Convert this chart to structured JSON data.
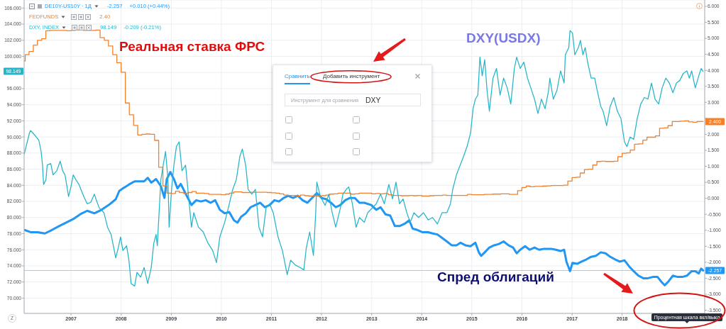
{
  "chart_data": {
    "type": "line",
    "xlim": [
      "2006-01-24",
      "2019-08-26"
    ],
    "xticks": [
      "2007",
      "2008",
      "2009",
      "2010",
      "2011",
      "2012",
      "2013",
      "2014",
      "2015",
      "2016",
      "2017",
      "2018"
    ],
    "ylim": [
      68.1,
      107
    ],
    "yticks": [
      {
        "value": 106,
        "label": "106.000"
      },
      {
        "value": 104,
        "label": "104.000"
      },
      {
        "value": 102,
        "label": "102.000"
      },
      {
        "value": 100,
        "label": "100.000"
      },
      {
        "value": 98,
        "label": null
      },
      {
        "value": 96,
        "label": "96.000"
      },
      {
        "value": 94,
        "label": "94.000"
      },
      {
        "value": 92,
        "label": "92.000"
      },
      {
        "value": 90,
        "label": "90.000"
      },
      {
        "value": 88,
        "label": "88.000"
      },
      {
        "value": 86,
        "label": "86.000"
      },
      {
        "value": 84,
        "label": "84.000"
      },
      {
        "value": 82,
        "label": "82.000"
      },
      {
        "value": 80,
        "label": "80.000"
      },
      {
        "value": 78,
        "label": "78.000"
      },
      {
        "value": 76,
        "label": "76.000"
      },
      {
        "value": 74,
        "label": "74.000"
      },
      {
        "value": 72,
        "label": "72.000"
      },
      {
        "value": 70,
        "label": "70.000"
      }
    ],
    "y2lim": [
      -3.6,
      6.2
    ],
    "y2ticks": [
      {
        "value": 6,
        "label": "6.000"
      },
      {
        "value": 5.5,
        "label": "5.500"
      },
      {
        "value": 5,
        "label": "5.000"
      },
      {
        "value": 4.5,
        "label": "4.500"
      },
      {
        "value": 4,
        "label": "4.000"
      },
      {
        "value": 3.5,
        "label": "3.500"
      },
      {
        "value": 3,
        "label": "3.000"
      },
      {
        "value": 2.5,
        "label": null
      },
      {
        "value": 2,
        "label": "2.000"
      },
      {
        "value": 1.5,
        "label": "1.500"
      },
      {
        "value": 1,
        "label": "1.000"
      },
      {
        "value": 0.5,
        "label": "0.500"
      },
      {
        "value": 0,
        "label": "0.000"
      },
      {
        "value": -0.5,
        "label": "-0.500"
      },
      {
        "value": -1,
        "label": "-1.000"
      },
      {
        "value": -1.5,
        "label": "-1.500"
      },
      {
        "value": -2,
        "label": "-2.000"
      },
      {
        "value": -2.5,
        "label": "-2.500"
      },
      {
        "value": -3,
        "label": "-3.000"
      },
      {
        "value": -3.5,
        "label": "-3.500"
      }
    ],
    "grid": true,
    "legend": "top left",
    "ref_lines": [
      {
        "axis": "y2",
        "value": -2.257,
        "color": "#9bcdf2"
      }
    ],
    "series": [
      {
        "name": "DE10Y-US10Y · 1Д",
        "color": "#2196f3",
        "axis": "y2",
        "x": [
          "2006-01-25",
          "2006-03-12",
          "2006-05-03",
          "2006-06-24",
          "2006-08-15",
          "2006-10-06",
          "2006-11-27",
          "2007-01-17",
          "2007-03-09",
          "2007-04-29",
          "2007-06-20",
          "2007-08-12",
          "2007-10-03",
          "2007-11-23",
          "2007-12-19",
          "2008-01-14",
          "2008-02-10",
          "2008-03-06",
          "2008-04-09",
          "2008-05-14",
          "2008-06-17",
          "2008-07-13",
          "2008-08-08",
          "2008-09-12",
          "2008-10-17",
          "2008-11-12",
          "2008-11-29",
          "2008-12-25",
          "2009-01-20",
          "2009-02-15",
          "2009-03-11",
          "2009-04-23",
          "2009-05-28",
          "2009-07-02",
          "2009-08-05",
          "2009-09-09",
          "2009-10-14",
          "2009-11-17",
          "2009-12-21",
          "2010-01-25",
          "2010-02-27",
          "2010-04-03",
          "2010-04-29",
          "2010-05-25",
          "2010-06-28",
          "2010-08-02",
          "2010-09-06",
          "2010-10-11",
          "2010-11-14",
          "2010-12-19",
          "2011-01-23",
          "2011-02-25",
          "2011-03-31",
          "2011-05-04",
          "2011-06-08",
          "2011-07-12",
          "2011-08-16",
          "2011-09-20",
          "2011-10-24",
          "2011-11-28",
          "2012-01-02",
          "2012-02-06",
          "2012-03-10",
          "2012-04-14",
          "2012-05-18",
          "2012-06-22",
          "2012-07-26",
          "2012-08-31",
          "2012-10-04",
          "2012-11-08",
          "2012-12-29",
          "2013-02-03",
          "2013-03-07",
          "2013-04-11",
          "2013-05-16",
          "2013-06-19",
          "2013-07-23",
          "2013-08-28",
          "2013-10-02",
          "2013-10-27",
          "2013-11-30",
          "2014-01-05",
          "2014-02-17",
          "2014-03-21",
          "2014-04-25",
          "2014-05-29",
          "2014-07-03",
          "2014-08-07",
          "2014-09-11",
          "2014-10-11",
          "2014-11-15",
          "2014-12-23",
          "2015-01-27",
          "2015-02-21",
          "2015-03-10",
          "2015-04-05",
          "2015-05-09",
          "2015-06-13",
          "2015-07-17",
          "2015-08-21",
          "2015-09-25",
          "2015-10-29",
          "2015-11-24",
          "2015-12-20",
          "2016-01-24",
          "2016-02-27",
          "2016-04-02",
          "2016-05-06",
          "2016-06-10",
          "2016-07-14",
          "2016-08-01",
          "2016-09-05",
          "2016-10-09",
          "2016-11-04",
          "2016-11-21",
          "2016-12-17",
          "2017-01-04",
          "2017-02-07",
          "2017-03-12",
          "2017-04-16",
          "2017-05-20",
          "2017-06-24",
          "2017-07-29",
          "2017-09-02",
          "2017-10-06",
          "2017-11-10",
          "2017-12-14",
          "2018-01-18",
          "2018-02-21",
          "2018-03-26",
          "2018-04-30",
          "2018-06-04",
          "2018-07-08",
          "2018-08-12",
          "2018-09-16",
          "2018-10-20",
          "2018-11-07",
          "2018-12-03",
          "2019-01-06",
          "2019-02-10",
          "2019-03-15",
          "2019-04-18",
          "2019-05-23",
          "2019-06-18",
          "2019-07-14",
          "2019-07-31",
          "2019-08-14"
        ],
        "values": [
          -0.99,
          -1.06,
          -1.06,
          -1.1,
          -0.99,
          -0.87,
          -0.76,
          -0.65,
          -0.5,
          -0.39,
          -0.47,
          -0.36,
          -0.21,
          -0.03,
          0.23,
          0.31,
          0.38,
          0.45,
          0.53,
          0.53,
          0.53,
          0.64,
          0.49,
          0.6,
          0.38,
          0.01,
          0.6,
          0.82,
          0.6,
          0.31,
          0.45,
          0.08,
          -0.21,
          -0.06,
          -0.1,
          -0.06,
          -0.14,
          -0.06,
          -0.36,
          -0.47,
          -0.43,
          -0.69,
          -0.76,
          -0.58,
          -0.47,
          -0.28,
          -0.21,
          -0.14,
          -0.28,
          -0.21,
          -0.06,
          -0.1,
          0.01,
          0.08,
          0.01,
          0.08,
          -0.06,
          -0.14,
          0.01,
          0.16,
          0.01,
          -0.03,
          -0.14,
          -0.28,
          -0.21,
          -0.06,
          0.01,
          0.01,
          -0.14,
          -0.14,
          -0.21,
          -0.36,
          -0.28,
          -0.5,
          -0.54,
          -0.87,
          -0.87,
          -0.8,
          -0.69,
          -0.95,
          -0.99,
          -1.06,
          -1.06,
          -1.1,
          -1.13,
          -1.24,
          -1.35,
          -1.47,
          -1.47,
          -1.39,
          -1.47,
          -1.5,
          -1.39,
          -1.69,
          -1.8,
          -1.69,
          -1.54,
          -1.47,
          -1.43,
          -1.35,
          -1.47,
          -1.54,
          -1.72,
          -1.61,
          -1.5,
          -1.61,
          -1.54,
          -1.61,
          -1.58,
          -1.58,
          -1.58,
          -1.61,
          -1.65,
          -1.61,
          -1.98,
          -2.28,
          -2.02,
          -2.05,
          -1.98,
          -1.91,
          -1.83,
          -1.8,
          -1.69,
          -1.72,
          -1.83,
          -1.91,
          -1.98,
          -1.94,
          -2.13,
          -2.28,
          -2.42,
          -2.5,
          -2.5,
          -2.46,
          -2.46,
          -2.64,
          -2.72,
          -2.61,
          -2.42,
          -2.46,
          -2.46,
          -2.42,
          -2.28,
          -2.28,
          -2.35,
          -2.2,
          -2.257
        ],
        "value_labels": [
          null,
          null,
          null,
          null,
          null,
          null,
          null,
          null,
          null,
          null,
          null,
          null,
          null,
          null,
          null,
          null,
          null,
          null,
          null,
          null,
          null,
          null,
          null,
          null,
          null,
          null,
          null,
          null,
          null,
          null,
          null,
          null,
          null,
          null,
          null,
          null,
          null,
          null,
          null,
          null,
          null,
          null,
          null,
          null,
          null,
          null,
          null,
          null,
          null,
          null,
          null,
          null,
          null,
          null,
          null,
          null,
          null,
          null,
          null,
          null,
          null,
          null,
          null,
          null,
          null,
          null,
          null,
          null,
          null,
          null,
          null,
          null,
          null,
          null,
          null,
          null,
          null,
          null,
          null,
          null,
          null,
          null,
          null,
          null,
          null,
          null,
          null,
          null,
          null,
          null,
          null,
          null,
          null,
          null,
          null,
          null,
          null,
          null,
          null,
          null,
          null,
          null,
          null,
          null,
          null,
          null,
          null,
          null,
          null,
          null,
          null,
          null,
          null,
          null,
          null,
          null,
          null,
          null,
          null,
          null,
          null,
          null,
          null,
          null,
          null,
          null,
          null,
          null,
          null,
          null,
          null,
          null,
          null,
          null,
          null,
          null,
          null,
          null,
          null,
          null,
          null,
          null,
          null,
          null,
          null,
          null,
          "-2.257"
        ]
      },
      {
        "name": "FEDFUNDS",
        "color": "#f3812b",
        "axis": "y2",
        "type": "step",
        "x": [
          "2006-01-24",
          "2006-02",
          "2006-03",
          "2006-04",
          "2006-05",
          "2006-06",
          "2006-07",
          "2006-08",
          "2006-09",
          "2006-10",
          "2006-11",
          "2006-12",
          "2007-01",
          "2007-02",
          "2007-03",
          "2007-04",
          "2007-05",
          "2007-06",
          "2007-07",
          "2007-08",
          "2007-09",
          "2007-10",
          "2007-11",
          "2007-12",
          "2008-01",
          "2008-02",
          "2008-03",
          "2008-04",
          "2008-05",
          "2008-06",
          "2008-07",
          "2008-08",
          "2008-09",
          "2008-10",
          "2008-11",
          "2008-12",
          "2009-01",
          "2009-02",
          "2009-03",
          "2009-04",
          "2009-05",
          "2009-06",
          "2009-07",
          "2009-08",
          "2009-09",
          "2009-10",
          "2009-11",
          "2009-12",
          "2010-01",
          "2010-02",
          "2010-03",
          "2010-04",
          "2010-05",
          "2010-06",
          "2010-07",
          "2010-08",
          "2010-09",
          "2010-10",
          "2010-11",
          "2010-12",
          "2011-01",
          "2011-02",
          "2011-03",
          "2011-04",
          "2011-05",
          "2011-06",
          "2011-07",
          "2011-08",
          "2011-09",
          "2011-10",
          "2011-11",
          "2011-12",
          "2012-01",
          "2012-02",
          "2012-03",
          "2012-04",
          "2012-05",
          "2012-06",
          "2012-07",
          "2012-08",
          "2012-09",
          "2012-10",
          "2012-11",
          "2012-12",
          "2013-01",
          "2013-02",
          "2013-03",
          "2013-04",
          "2013-05",
          "2013-06",
          "2013-07",
          "2013-08",
          "2013-09",
          "2013-10",
          "2013-11",
          "2013-12",
          "2014-01",
          "2014-02",
          "2014-03",
          "2014-04",
          "2014-05",
          "2014-06",
          "2014-07",
          "2014-08",
          "2014-09",
          "2014-10",
          "2014-11",
          "2014-12",
          "2015-01",
          "2015-02",
          "2015-03",
          "2015-04",
          "2015-05",
          "2015-06",
          "2015-07",
          "2015-08",
          "2015-09",
          "2015-10",
          "2015-11",
          "2015-12",
          "2016-01",
          "2016-02",
          "2016-03",
          "2016-04",
          "2016-05",
          "2016-06",
          "2016-07",
          "2016-08",
          "2016-09",
          "2016-10",
          "2016-11",
          "2016-12",
          "2017-01",
          "2017-02",
          "2017-03",
          "2017-04",
          "2017-05",
          "2017-06",
          "2017-07",
          "2017-08",
          "2017-09",
          "2017-10",
          "2017-11",
          "2017-12",
          "2018-01",
          "2018-02",
          "2018-03",
          "2018-04",
          "2018-05",
          "2018-06",
          "2018-07",
          "2018-08",
          "2018-09",
          "2018-10",
          "2018-11",
          "2018-12",
          "2019-01",
          "2019-02",
          "2019-03",
          "2019-04",
          "2019-05",
          "2019-06",
          "2019-07",
          "2019-08-14"
        ],
        "values": [
          4.29,
          4.49,
          4.59,
          4.79,
          4.94,
          4.99,
          5.24,
          5.25,
          5.25,
          5.25,
          5.25,
          5.24,
          5.25,
          5.26,
          5.26,
          5.25,
          5.25,
          5.25,
          5.26,
          5.02,
          4.94,
          4.76,
          4.49,
          4.24,
          3.94,
          2.98,
          2.61,
          2.28,
          1.98,
          2.0,
          2.01,
          2.0,
          1.81,
          0.97,
          0.39,
          0.16,
          0.15,
          0.22,
          0.18,
          0.15,
          0.18,
          0.21,
          0.16,
          0.16,
          0.15,
          0.12,
          0.12,
          0.12,
          0.11,
          0.13,
          0.16,
          0.2,
          0.2,
          0.18,
          0.18,
          0.19,
          0.19,
          0.19,
          0.19,
          0.18,
          0.17,
          0.16,
          0.14,
          0.1,
          0.09,
          0.09,
          0.07,
          0.1,
          0.08,
          0.07,
          0.08,
          0.07,
          0.08,
          0.1,
          0.13,
          0.14,
          0.16,
          0.16,
          0.16,
          0.13,
          0.14,
          0.16,
          0.16,
          0.16,
          0.14,
          0.15,
          0.14,
          0.15,
          0.11,
          0.09,
          0.09,
          0.08,
          0.08,
          0.09,
          0.08,
          0.09,
          0.07,
          0.07,
          0.08,
          0.09,
          0.09,
          0.1,
          0.09,
          0.09,
          0.09,
          0.09,
          0.09,
          0.12,
          0.11,
          0.11,
          0.11,
          0.12,
          0.12,
          0.13,
          0.13,
          0.14,
          0.14,
          0.12,
          0.12,
          0.24,
          0.34,
          0.38,
          0.36,
          0.37,
          0.37,
          0.38,
          0.39,
          0.4,
          0.4,
          0.4,
          0.41,
          0.54,
          0.65,
          0.66,
          0.79,
          0.9,
          0.91,
          1.04,
          1.15,
          1.16,
          1.15,
          1.15,
          1.16,
          1.3,
          1.41,
          1.42,
          1.51,
          1.69,
          1.7,
          1.82,
          1.91,
          1.91,
          1.95,
          2.19,
          2.2,
          2.27,
          2.4,
          2.4,
          2.41,
          2.42,
          2.39,
          2.38,
          2.4,
          2.4
        ],
        "value_labels": [
          null,
          null,
          null,
          null,
          null,
          null,
          null,
          null,
          null,
          null,
          null,
          null,
          null,
          null,
          null,
          null,
          null,
          null,
          null,
          null,
          null,
          null,
          null,
          null,
          null,
          null,
          null,
          null,
          null,
          null,
          null,
          null,
          null,
          null,
          null,
          null,
          null,
          null,
          null,
          null,
          null,
          null,
          null,
          null,
          null,
          null,
          null,
          null,
          null,
          null,
          null,
          null,
          null,
          null,
          null,
          null,
          null,
          null,
          null,
          null,
          null,
          null,
          null,
          null,
          null,
          null,
          null,
          null,
          null,
          null,
          null,
          null,
          null,
          null,
          null,
          null,
          null,
          null,
          null,
          null,
          null,
          null,
          null,
          null,
          null,
          null,
          null,
          null,
          null,
          null,
          null,
          null,
          null,
          null,
          null,
          null,
          null,
          null,
          null,
          null,
          null,
          null,
          null,
          null,
          null,
          null,
          null,
          null,
          null,
          null,
          null,
          null,
          null,
          null,
          null,
          null,
          null,
          null,
          null,
          null,
          null,
          null,
          null,
          null,
          null,
          null,
          null,
          null,
          null,
          null,
          null,
          null,
          null,
          null,
          null,
          null,
          null,
          null,
          null,
          null,
          null,
          null,
          null,
          null,
          null,
          null,
          null,
          null,
          null,
          null,
          null,
          null,
          null,
          null,
          null,
          null,
          null,
          null,
          null,
          null,
          null,
          null,
          null,
          "2.400"
        ]
      },
      {
        "name": "DXY, INDEX",
        "color": "#26b5c8",
        "x": [
          "2006-01-25",
          "2006-03-04",
          "2006-03-12",
          "2006-03-29",
          "2006-05-11",
          "2006-05-28",
          "2006-06-07",
          "2006-06-15",
          "2006-07-02",
          "2006-07-11",
          "2006-08-06",
          "2006-08-23",
          "2006-09-19",
          "2006-10-14",
          "2006-11-01",
          "2006-11-18",
          "2006-12-14",
          "2006-12-31",
          "2007-01-17",
          "2007-02-05",
          "2007-02-28",
          "2007-04-04",
          "2007-04-29",
          "2007-05-25",
          "2007-06-20",
          "2007-07-08",
          "2007-07-25",
          "2007-08-29",
          "2007-09-24",
          "2007-10-20",
          "2007-11-23",
          "2007-12-11",
          "2007-12-28",
          "2008-01-14",
          "2008-02-10",
          "2008-02-27",
          "2008-03-14",
          "2008-04-09",
          "2008-04-26",
          "2008-05-22",
          "2008-06-17",
          "2008-07-13",
          "2008-08-08",
          "2008-08-26",
          "2008-09-12",
          "2008-09-21",
          "2008-10-17",
          "2008-11-03",
          "2008-11-20",
          "2008-12-08",
          "2008-12-16",
          "2009-01-03",
          "2009-01-20",
          "2009-02-07",
          "2009-02-27",
          "2009-03-20",
          "2009-04-15",
          "2009-05-02",
          "2009-05-28",
          "2009-06-14",
          "2009-07-18",
          "2009-08-22",
          "2009-09-26",
          "2009-10-30",
          "2009-11-26",
          "2009-12-21",
          "2010-01-25",
          "2010-02-21",
          "2010-03-25",
          "2010-04-20",
          "2010-05-16",
          "2010-06-03",
          "2010-06-28",
          "2010-07-15",
          "2010-08-11",
          "2010-09-06",
          "2010-10-02",
          "2010-10-28",
          "2010-11-23",
          "2010-12-19",
          "2011-01-14",
          "2011-02-18",
          "2011-03-22",
          "2011-04-26",
          "2011-05-21",
          "2011-06-25",
          "2011-07-29",
          "2011-08-25",
          "2011-09-12",
          "2011-10-07",
          "2011-11-03",
          "2011-11-20",
          "2011-11-28",
          "2011-12-24",
          "2012-01-28",
          "2012-02-23",
          "2012-03-19",
          "2012-04-14",
          "2012-05-18",
          "2012-06-05",
          "2012-06-30",
          "2012-07-18",
          "2012-08-13",
          "2012-09-09",
          "2012-10-04",
          "2012-11-08",
          "2012-12-03",
          "2013-02-03",
          "2013-03-07",
          "2013-04-03",
          "2013-05-06",
          "2013-06-02",
          "2013-06-27",
          "2013-07-23",
          "2013-08-18",
          "2013-09-14",
          "2013-10-09",
          "2013-11-05",
          "2013-12-09",
          "2014-01-13",
          "2014-02-17",
          "2014-03-21",
          "2014-04-25",
          "2014-05-29",
          "2014-07-03",
          "2014-07-29",
          "2014-08-15",
          "2014-09-11",
          "2014-10-06",
          "2014-11-02",
          "2014-11-27",
          "2014-12-23",
          "2015-01-10",
          "2015-01-27",
          "2015-02-14",
          "2015-03-01",
          "2015-03-18",
          "2015-04-05",
          "2015-04-22",
          "2015-05-09",
          "2015-06-04",
          "2015-06-30",
          "2015-07-26",
          "2015-08-21",
          "2015-09-16",
          "2015-10-12",
          "2015-11-07",
          "2015-11-24",
          "2015-12-20",
          "2016-01-15",
          "2016-02-11",
          "2016-03-06",
          "2016-04-02",
          "2016-04-27",
          "2016-05-23",
          "2016-06-18",
          "2016-07-14",
          "2016-07-23",
          "2016-08-17",
          "2016-09-13",
          "2016-10-09",
          "2016-11-04",
          "2016-11-13",
          "2016-12-08",
          "2016-12-17",
          "2017-01-04",
          "2017-01-21",
          "2017-02-16",
          "2017-03-03",
          "2017-03-21",
          "2017-04-07",
          "2017-04-24",
          "2017-05-20",
          "2017-06-15",
          "2017-07-03",
          "2017-07-29",
          "2017-08-15",
          "2017-09-10",
          "2017-10-06",
          "2017-11-01",
          "2017-11-27",
          "2017-12-23",
          "2018-01-18",
          "2018-02-05",
          "2018-02-28",
          "2018-03-26",
          "2018-04-21",
          "2018-05-17",
          "2018-06-12",
          "2018-07-08",
          "2018-08-03",
          "2018-08-29",
          "2018-09-24",
          "2018-10-20",
          "2018-11-15",
          "2018-12-11",
          "2019-01-06",
          "2019-02-01",
          "2019-02-25",
          "2019-03-23",
          "2019-04-18",
          "2019-05-06",
          "2019-05-23",
          "2019-06-18",
          "2019-07-14",
          "2019-07-31",
          "2019-08-14"
        ],
        "values": [
          87.9,
          90.5,
          90.8,
          90.5,
          89.6,
          88.2,
          86.5,
          84.1,
          84.7,
          86.5,
          86.7,
          85.3,
          85.8,
          87.0,
          85.8,
          85.3,
          82.6,
          83.8,
          85.3,
          84.7,
          84.1,
          82.6,
          81.7,
          81.9,
          82.9,
          82.0,
          81.2,
          80.6,
          78.8,
          77.9,
          75.0,
          76.2,
          77.6,
          75.9,
          76.5,
          74.7,
          71.8,
          71.5,
          73.2,
          72.6,
          73.8,
          71.8,
          73.8,
          76.8,
          77.9,
          76.5,
          84.7,
          86.5,
          88.2,
          84.7,
          78.8,
          83.5,
          86.5,
          88.8,
          89.4,
          85.8,
          86.5,
          83.5,
          78.8,
          80.6,
          78.8,
          78.2,
          76.8,
          75.9,
          74.4,
          77.6,
          79.4,
          81.2,
          83.5,
          84.7,
          87.6,
          88.5,
          86.4,
          83.5,
          82.9,
          83.5,
          78.8,
          77.6,
          81.2,
          81.7,
          80.6,
          77.6,
          75.9,
          72.9,
          74.7,
          74.1,
          73.8,
          73.5,
          76.2,
          78.2,
          75.3,
          80.6,
          84.4,
          82.6,
          81.5,
          82.9,
          80.6,
          78.8,
          81.2,
          82.9,
          83.5,
          83.8,
          81.7,
          78.8,
          80.0,
          79.4,
          80.6,
          81.7,
          82.9,
          81.7,
          84.1,
          82.3,
          84.4,
          81.7,
          82.3,
          80.6,
          79.4,
          80.6,
          80.0,
          80.6,
          79.7,
          80.0,
          79.2,
          80.6,
          80.6,
          81.7,
          83.5,
          85.3,
          86.4,
          87.6,
          88.8,
          90.5,
          93.5,
          94.7,
          95.2,
          99.9,
          97.6,
          99.6,
          95.8,
          93.2,
          97.3,
          98.5,
          95.2,
          97.3,
          96.1,
          94.1,
          98.5,
          99.9,
          98.5,
          99.3,
          97.3,
          96.1,
          94.7,
          92.9,
          94.7,
          93.5,
          95.8,
          97.3,
          94.7,
          95.8,
          98.2,
          96.7,
          100.2,
          101.1,
          103.2,
          102.9,
          100.2,
          101.1,
          102.0,
          100.2,
          101.1,
          99.3,
          97.3,
          97.3,
          95.8,
          93.8,
          93.2,
          91.4,
          93.8,
          94.9,
          93.2,
          92.3,
          89.4,
          88.8,
          90.0,
          89.7,
          92.3,
          94.1,
          94.9,
          94.7,
          96.7,
          94.7,
          94.1,
          96.1,
          97.3,
          96.7,
          95.5,
          96.7,
          97.0,
          97.9,
          98.2,
          97.3,
          98.2,
          96.1,
          97.6,
          98.5,
          98.149
        ]
      }
    ],
    "annotations": [
      "-2.257",
      "+0.010 (+0.44%)",
      "2.40",
      "98.149",
      "-0.209 (-0.21%)",
      "Реальная ставка ФРС",
      "DXY(USDX)",
      "Спред облигаций",
      "Сравнить",
      "Добавить инструмент",
      "Инструмент для сравнения",
      "DXY",
      "Процентная шкала вкл/выкл",
      "Z",
      "98.149"
    ]
  }
}
